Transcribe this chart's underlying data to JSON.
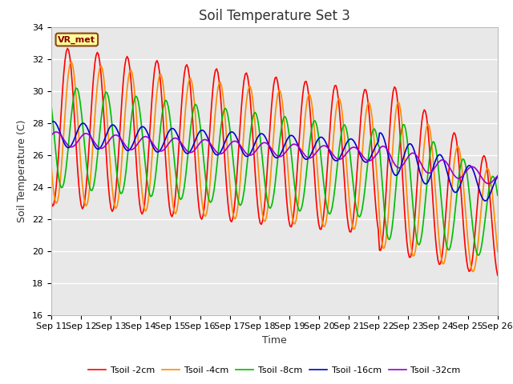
{
  "title": "Soil Temperature Set 3",
  "xlabel": "Time",
  "ylabel": "Soil Temperature (C)",
  "ylim": [
    16,
    34
  ],
  "x_tick_labels": [
    "Sep 11",
    "Sep 12",
    "Sep 13",
    "Sep 14",
    "Sep 15",
    "Sep 16",
    "Sep 17",
    "Sep 18",
    "Sep 19",
    "Sep 20",
    "Sep 21",
    "Sep 22",
    "Sep 23",
    "Sep 24",
    "Sep 25",
    "Sep 26"
  ],
  "legend_labels": [
    "Tsoil -2cm",
    "Tsoil -4cm",
    "Tsoil -8cm",
    "Tsoil -16cm",
    "Tsoil -32cm"
  ],
  "line_colors": [
    "#FF0000",
    "#FF8C00",
    "#00BB00",
    "#0000CC",
    "#9900CC"
  ],
  "annotation_text": "VR_met",
  "annotation_box_color": "#FFFF99",
  "annotation_box_edge": "#8B4513",
  "background_color": "#FFFFFF",
  "plot_bg_color": "#E8E8E8",
  "grid_color": "#FFFFFF",
  "title_fontsize": 12,
  "axis_fontsize": 9,
  "tick_fontsize": 8,
  "linewidth": 1.2,
  "figwidth": 6.4,
  "figheight": 4.8,
  "dpi": 100
}
